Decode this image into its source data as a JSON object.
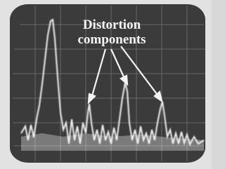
{
  "annotation": {
    "lines": [
      "Distortion",
      "components"
    ]
  }
}
